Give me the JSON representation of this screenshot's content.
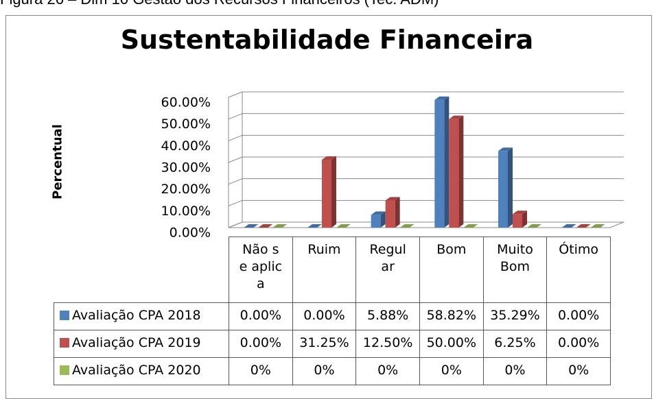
{
  "caption": "Figura 26 – Dim 10 Gestão dos Recursos Financeiros (Tec. ADM)",
  "chart_data": {
    "type": "bar3d",
    "title": "Sustentabilidade Financeira",
    "y_label": "Percentual",
    "categories": [
      "Não se aplica",
      "Ruim",
      "Regular",
      "Bom",
      "Muito Bom",
      "Ótimo"
    ],
    "series": [
      {
        "name": "Avaliação CPA 2018",
        "color": "#4f81bd",
        "values": [
          0,
          0,
          5.88,
          58.82,
          35.29,
          0
        ],
        "value_labels": [
          "0.00%",
          "0.00%",
          "5.88%",
          "58.82%",
          "35.29%",
          "0.00%"
        ]
      },
      {
        "name": "Avaliação CPA 2019",
        "color": "#c0504d",
        "values": [
          0,
          31.25,
          12.5,
          50,
          6.25,
          0
        ],
        "value_labels": [
          "0.00%",
          "31.25%",
          "12.50%",
          "50.00%",
          "6.25%",
          "0.00%"
        ]
      },
      {
        "name": "Avaliação CPA 2020",
        "color": "#9bbb59",
        "values": [
          0,
          0,
          0,
          0,
          0,
          0
        ],
        "value_labels": [
          "0%",
          "0%",
          "0%",
          "0%",
          "0%",
          "0%"
        ]
      }
    ],
    "ylim": [
      0,
      60
    ],
    "yticks": [
      {
        "value": 0,
        "label": "0.00%"
      },
      {
        "value": 10,
        "label": "10.00%"
      },
      {
        "value": 20,
        "label": "20.00%"
      },
      {
        "value": 30,
        "label": "30.00%"
      },
      {
        "value": 40,
        "label": "40.00%"
      },
      {
        "value": 50,
        "label": "50.00%"
      },
      {
        "value": 60,
        "label": "60.00%"
      }
    ],
    "grid": true
  }
}
